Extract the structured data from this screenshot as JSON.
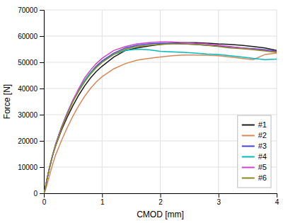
{
  "chart_data": {
    "type": "line",
    "xlabel": "CMOD [mm]",
    "ylabel": "Force [N]",
    "xlim": [
      0,
      4
    ],
    "ylim": [
      0,
      70000
    ],
    "xticks": [
      0,
      1,
      2,
      3,
      4
    ],
    "yticks": [
      0,
      10000,
      20000,
      30000,
      40000,
      50000,
      60000,
      70000
    ],
    "grid": true,
    "legend": "lower right",
    "x": [
      0,
      0.02,
      0.05,
      0.1,
      0.15,
      0.2,
      0.3,
      0.4,
      0.5,
      0.6,
      0.7,
      0.8,
      0.9,
      1.0,
      1.2,
      1.4,
      1.6,
      1.8,
      2.0,
      2.2,
      2.4,
      2.6,
      2.8,
      3.0,
      3.2,
      3.4,
      3.6,
      3.8,
      4.0
    ],
    "series": [
      {
        "name": "#1",
        "color": "#1a1a1a",
        "values": [
          0,
          1500,
          5000,
          10000,
          14500,
          18000,
          24000,
          29000,
          33500,
          37500,
          41000,
          44000,
          46500,
          48500,
          52000,
          54500,
          55500,
          56200,
          56800,
          57200,
          57500,
          57500,
          57300,
          57000,
          56800,
          56500,
          56000,
          55500,
          54500
        ]
      },
      {
        "name": "#2",
        "color": "#d4885a",
        "values": [
          0,
          800,
          3000,
          7000,
          11000,
          14500,
          20000,
          25000,
          29500,
          33500,
          37000,
          40000,
          42500,
          44500,
          47500,
          49500,
          50800,
          51500,
          52000,
          52500,
          52800,
          52800,
          52700,
          52500,
          52000,
          51500,
          51000,
          53000,
          53500
        ]
      },
      {
        "name": "#3",
        "color": "#4444cc",
        "values": [
          0,
          1500,
          5000,
          10000,
          14500,
          18500,
          25000,
          30500,
          35500,
          39500,
          43000,
          46000,
          48500,
          50500,
          53500,
          55500,
          56500,
          57000,
          57200,
          57200,
          57000,
          56800,
          56500,
          56200,
          55800,
          55500,
          55200,
          54800,
          54200
        ]
      },
      {
        "name": "#4",
        "color": "#00bbbb",
        "values": [
          0,
          1500,
          5000,
          10000,
          14500,
          18500,
          25000,
          30500,
          35500,
          39500,
          43000,
          46000,
          48000,
          50000,
          53000,
          54500,
          55000,
          54800,
          54200,
          54000,
          53800,
          53500,
          53200,
          53000,
          52500,
          52000,
          51500,
          51000,
          51200
        ]
      },
      {
        "name": "#5",
        "color": "#cc44cc",
        "values": [
          0,
          1500,
          5000,
          10000,
          14500,
          18500,
          25000,
          30500,
          35500,
          40000,
          44000,
          47000,
          49500,
          51500,
          54500,
          56000,
          57000,
          57500,
          57800,
          57800,
          57500,
          57200,
          57000,
          56500,
          56000,
          55500,
          55000,
          54500,
          54000
        ]
      },
      {
        "name": "#6",
        "color": "#888822",
        "values": [
          0,
          1500,
          5000,
          10000,
          14500,
          18000,
          24500,
          30000,
          35000,
          39000,
          42500,
          45500,
          48000,
          50000,
          53000,
          55000,
          56000,
          56500,
          56800,
          57000,
          57000,
          56800,
          56500,
          56000,
          55500,
          55200,
          54800,
          54300,
          53800
        ]
      }
    ]
  }
}
